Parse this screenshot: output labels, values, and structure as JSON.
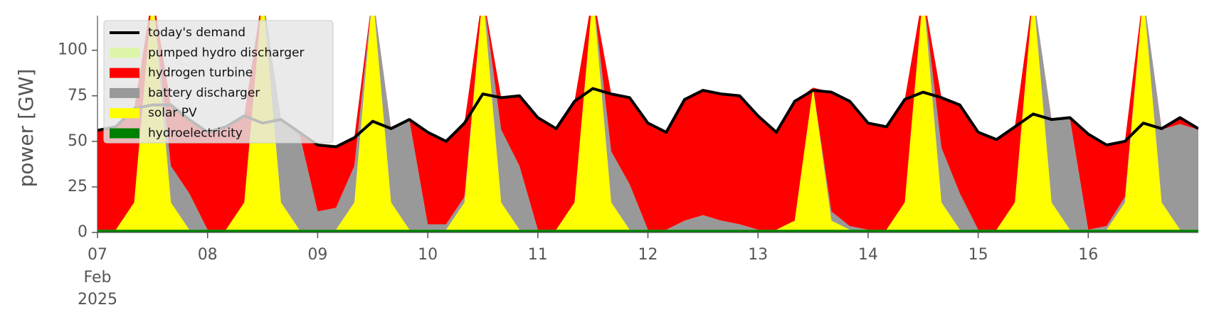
{
  "chart_data": {
    "type": "stacked_area",
    "ylabel": "power [GW]",
    "x": [
      0,
      4,
      8,
      12,
      16,
      20,
      24,
      28,
      32,
      36,
      40,
      44,
      48,
      52,
      56,
      60,
      64,
      68,
      72,
      76,
      80,
      84,
      88,
      92,
      96,
      100,
      104,
      108,
      112,
      116,
      120,
      124,
      128,
      132,
      136,
      140,
      144,
      148,
      152,
      156,
      160,
      164,
      168,
      172,
      176,
      180,
      184,
      188,
      192,
      196,
      200,
      204,
      208,
      212,
      216,
      220,
      224,
      228,
      232,
      236,
      240
    ],
    "xlim": [
      0,
      240
    ],
    "xticks": [
      {
        "value": 0,
        "label": "07"
      },
      {
        "value": 24,
        "label": "08"
      },
      {
        "value": 48,
        "label": "09"
      },
      {
        "value": 72,
        "label": "10"
      },
      {
        "value": 96,
        "label": "11"
      },
      {
        "value": 120,
        "label": "12"
      },
      {
        "value": 144,
        "label": "13"
      },
      {
        "value": 168,
        "label": "14"
      },
      {
        "value": 192,
        "label": "15"
      },
      {
        "value": 216,
        "label": "16"
      }
    ],
    "x_sublabels": [
      "Feb",
      "2025"
    ],
    "ylim": [
      0,
      119
    ],
    "yticks": [
      0,
      25,
      50,
      75,
      100
    ],
    "series": [
      {
        "name": "today's demand",
        "kind": "line",
        "color": "#000000",
        "values": [
          56,
          58,
          68,
          70,
          70,
          62,
          55,
          58,
          64,
          60,
          62,
          55,
          48,
          47,
          52,
          61,
          57,
          62,
          55,
          50,
          60,
          76,
          74,
          75,
          63,
          57,
          72,
          79,
          76,
          74,
          60,
          55,
          73,
          78,
          76,
          75,
          64,
          55,
          72,
          78,
          77,
          72,
          60,
          58,
          73,
          77,
          74,
          70,
          55,
          51,
          58,
          65,
          62,
          63,
          54,
          48,
          50,
          60,
          57,
          63,
          57
        ]
      },
      {
        "name": "pumped hydro discharger",
        "kind": "area",
        "color": "#dcf5a8",
        "values": [
          0,
          0,
          0,
          0,
          0,
          0,
          0,
          0,
          0,
          0,
          0,
          0,
          1,
          1,
          0,
          0,
          0,
          0,
          1,
          0,
          0,
          0,
          0,
          0,
          0,
          0,
          0,
          0,
          0,
          0,
          0,
          0,
          0,
          0,
          0,
          0,
          0,
          0,
          0,
          0,
          0,
          0,
          0,
          0,
          0,
          0,
          0,
          0,
          0,
          0,
          0,
          0,
          0,
          0,
          0,
          0,
          0,
          0,
          0,
          0,
          0
        ]
      },
      {
        "name": "hydrogen turbine",
        "kind": "area",
        "color": "#ff0000",
        "values": [
          54.5,
          56.5,
          51.5,
          0,
          33.5,
          40.5,
          53.5,
          56.5,
          47.5,
          0,
          0.5,
          0.5,
          36.5,
          33.5,
          15.5,
          0,
          0.5,
          0.5,
          50.5,
          45.5,
          40.5,
          0,
          17.5,
          38.5,
          61.5,
          55.5,
          55.5,
          0,
          31.5,
          47.5,
          58.5,
          53.5,
          66.5,
          68.5,
          69.5,
          70.5,
          62.5,
          53.5,
          65.5,
          0,
          65.5,
          68.5,
          58.5,
          56.5,
          56.5,
          0,
          27.5,
          48.5,
          53.5,
          49.5,
          41.5,
          0,
          0.5,
          0.5,
          52.5,
          44.5,
          30.5,
          0,
          0.5,
          3.5,
          0.5
        ]
      },
      {
        "name": "battery discharger",
        "kind": "area",
        "color": "#999999",
        "values": [
          0,
          0,
          0,
          0,
          20,
          20,
          0,
          0,
          0,
          0,
          45,
          53,
          10,
          12,
          20,
          0,
          40,
          60,
          3,
          3,
          3,
          0,
          40,
          35,
          0,
          0,
          0,
          0,
          28,
          25,
          0,
          0,
          5,
          8,
          5,
          3,
          0,
          0,
          0,
          0,
          5,
          2,
          0,
          0,
          0,
          0,
          30,
          20,
          0,
          0,
          0,
          0,
          45,
          61,
          0,
          2,
          3,
          0,
          40,
          58,
          55
        ]
      },
      {
        "name": "solar PV",
        "kind": "area",
        "color": "#ffff00",
        "values": [
          0,
          0,
          15,
          130,
          15,
          0,
          0,
          0,
          15,
          130,
          15,
          0,
          0,
          0,
          15,
          130,
          15,
          0,
          0,
          0,
          15,
          130,
          15,
          0,
          0,
          0,
          15,
          130,
          15,
          0,
          0,
          0,
          0,
          0,
          0,
          0,
          0,
          0,
          5,
          78,
          5,
          0,
          0,
          0,
          15,
          130,
          15,
          0,
          0,
          0,
          15,
          130,
          15,
          0,
          0,
          0,
          15,
          130,
          15,
          0,
          0
        ]
      },
      {
        "name": "hydroelectricity",
        "kind": "area",
        "color": "#008000",
        "values": [
          1.5,
          1.5,
          1.5,
          1.5,
          1.5,
          1.5,
          1.5,
          1.5,
          1.5,
          1.5,
          1.5,
          1.5,
          1.5,
          1.5,
          1.5,
          1.5,
          1.5,
          1.5,
          1.5,
          1.5,
          1.5,
          1.5,
          1.5,
          1.5,
          1.5,
          1.5,
          1.5,
          1.5,
          1.5,
          1.5,
          1.5,
          1.5,
          1.5,
          1.5,
          1.5,
          1.5,
          1.5,
          1.5,
          1.5,
          1.5,
          1.5,
          1.5,
          1.5,
          1.5,
          1.5,
          1.5,
          1.5,
          1.5,
          1.5,
          1.5,
          1.5,
          1.5,
          1.5,
          1.5,
          1.5,
          1.5,
          1.5,
          1.5,
          1.5,
          1.5,
          1.5
        ]
      }
    ]
  }
}
